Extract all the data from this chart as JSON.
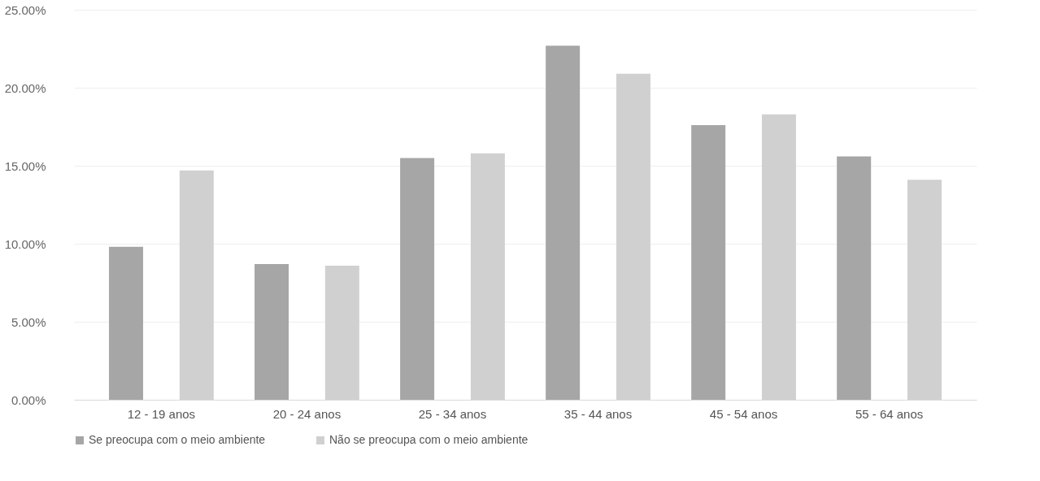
{
  "chart_data": {
    "type": "bar",
    "categories": [
      "12 - 19 anos",
      "20 - 24 anos",
      "25 - 34 anos",
      "35 - 44 anos",
      "45 - 54 anos",
      "55 - 64 anos"
    ],
    "series": [
      {
        "name": "Se preocupa com o meio ambiente",
        "color": "#a6a6a6",
        "values": [
          9.8,
          8.7,
          15.5,
          22.7,
          17.6,
          15.6
        ]
      },
      {
        "name": "Não se preocupa com o meio ambiente",
        "color": "#d0d0d0",
        "values": [
          14.7,
          8.6,
          15.8,
          20.9,
          18.3,
          14.1
        ]
      }
    ],
    "ylim": [
      0,
      25
    ],
    "yticks": [
      {
        "value": 0,
        "label": "0.00%"
      },
      {
        "value": 5,
        "label": "5.00%"
      },
      {
        "value": 10,
        "label": "10.00%"
      },
      {
        "value": 15,
        "label": "15.00%"
      },
      {
        "value": 20,
        "label": "20.00%"
      },
      {
        "value": 25,
        "label": "25.00%"
      }
    ],
    "grid": "y",
    "legend": "bottom"
  }
}
